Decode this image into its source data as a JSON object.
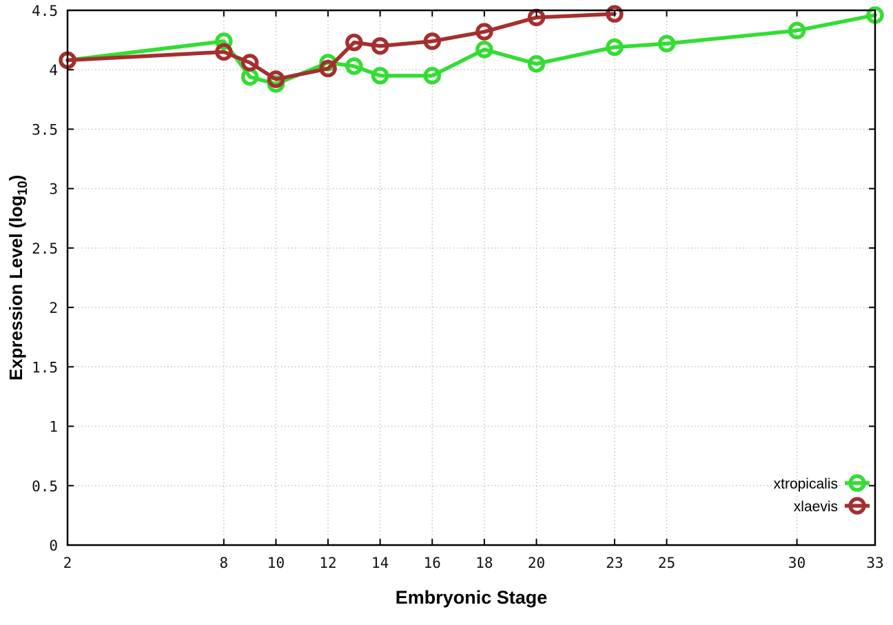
{
  "figure": {
    "background": "#ffffff",
    "border_color": "#000000",
    "grid_color": "#bdbdbd",
    "tick_color": "#000000"
  },
  "chart_data": {
    "type": "line",
    "title": "",
    "xlabel": "Embryonic Stage",
    "ylabel": "Expression Level (log10)",
    "ylabel_parts": {
      "main": "Expression Level (log",
      "sub": "10",
      "close": ")"
    },
    "xlim": [
      2,
      33
    ],
    "ylim": [
      0,
      4.5
    ],
    "x_ticks": [
      2,
      8,
      10,
      12,
      14,
      16,
      18,
      20,
      23,
      25,
      30,
      33
    ],
    "y_ticks": [
      0,
      0.5,
      1,
      1.5,
      2,
      2.5,
      3,
      3.5,
      4,
      4.5
    ],
    "grid": true,
    "grid_style": "dotted",
    "legend_position": "bottom-right",
    "marker": "open-circle",
    "series": [
      {
        "name": "xtropicalis",
        "color": "#33dd33",
        "x": [
          2,
          8,
          9,
          10,
          12,
          13,
          14,
          16,
          18,
          20,
          23,
          25,
          30,
          33
        ],
        "y": [
          4.08,
          4.24,
          3.94,
          3.88,
          4.06,
          4.03,
          3.95,
          3.95,
          4.17,
          4.05,
          4.19,
          4.22,
          4.33,
          4.46
        ]
      },
      {
        "name": "xlaevis",
        "color": "#a52f2f",
        "x": [
          2,
          8,
          9,
          10,
          12,
          13,
          14,
          16,
          18,
          20,
          23
        ],
        "y": [
          4.08,
          4.15,
          4.06,
          3.92,
          4.01,
          4.23,
          4.2,
          4.24,
          4.32,
          4.44,
          4.47
        ]
      }
    ]
  }
}
